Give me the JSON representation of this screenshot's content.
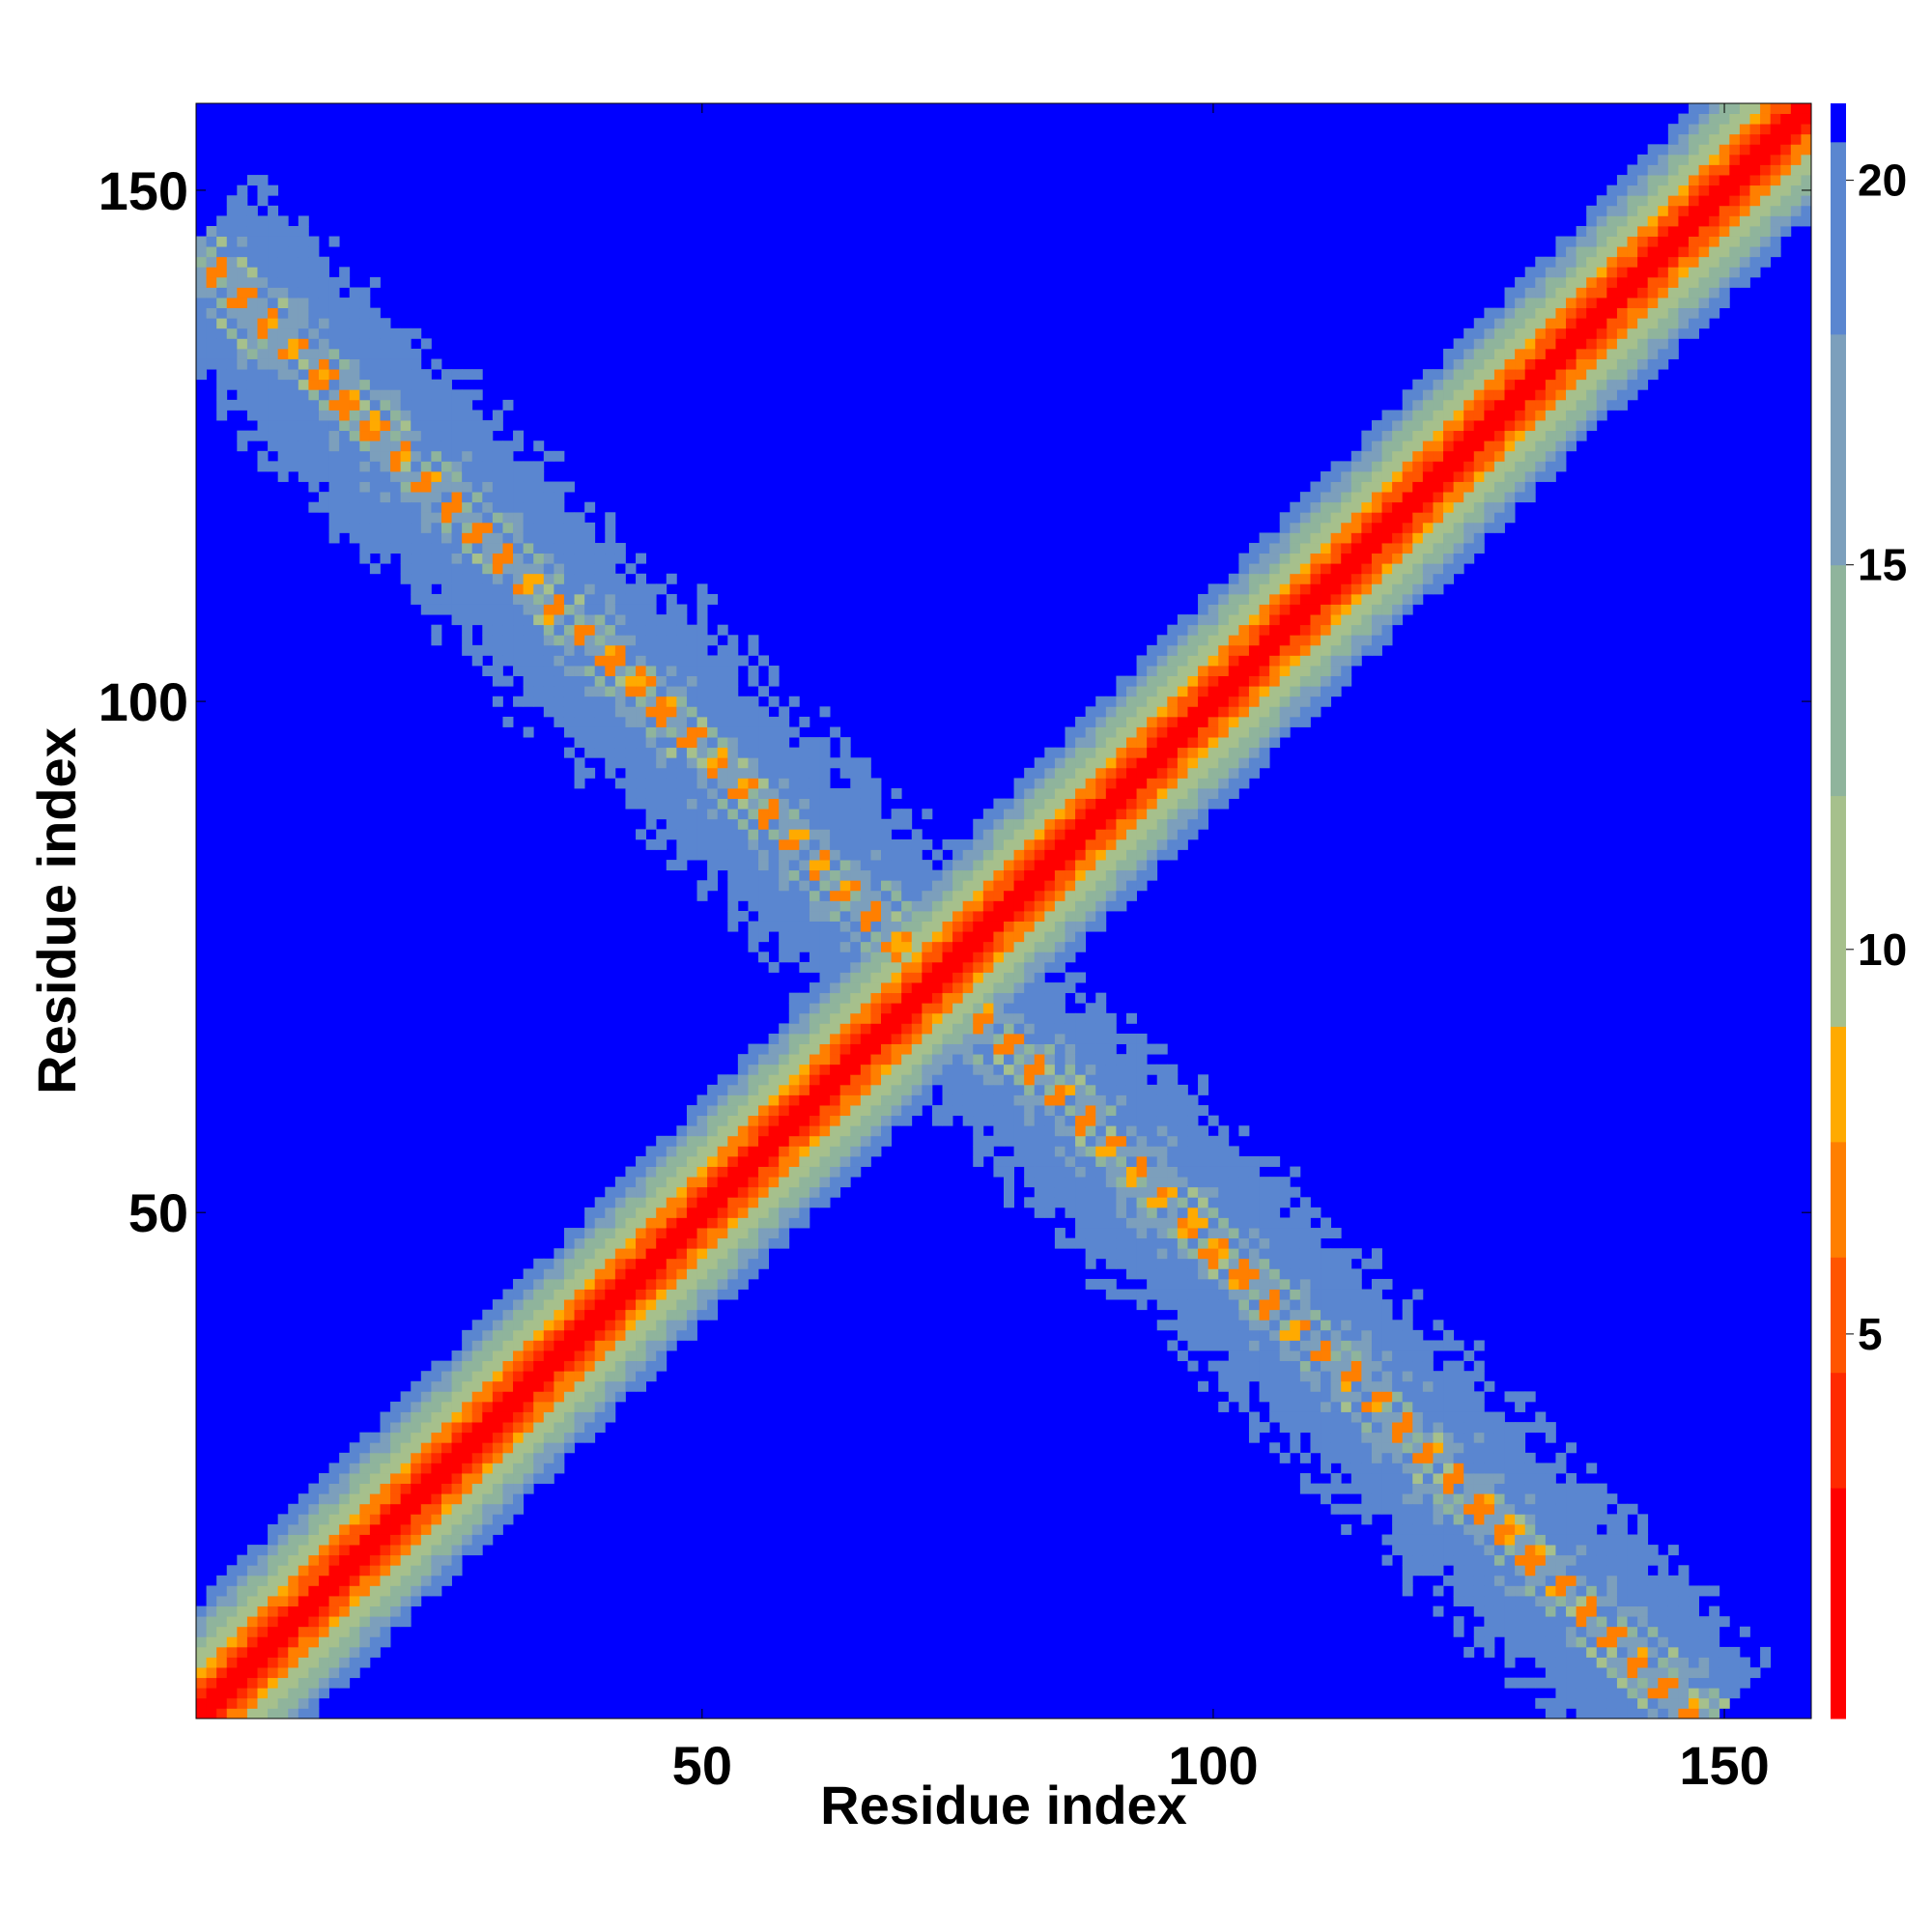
{
  "chart_data": {
    "type": "heatmap",
    "title": "",
    "xlabel": "Residue index",
    "ylabel": "Residue index",
    "xlim": [
      1,
      158
    ],
    "ylim": [
      1,
      158
    ],
    "x_ticks": [
      50,
      100,
      150
    ],
    "y_ticks": [
      50,
      100,
      150
    ],
    "grid": false,
    "n_residues": 158,
    "colorbar": {
      "range": [
        0,
        21
      ],
      "ticks": [
        5,
        10,
        15,
        20
      ],
      "position": "right",
      "stops": [
        {
          "value": 0,
          "color": "#ff0000"
        },
        {
          "value": 3.0,
          "color": "#ff2a00"
        },
        {
          "value": 4.5,
          "color": "#ff5500"
        },
        {
          "value": 6.0,
          "color": "#ff7f00"
        },
        {
          "value": 7.5,
          "color": "#ffaa00"
        },
        {
          "value": 9.0,
          "color": "#a6c08c"
        },
        {
          "value": 12.0,
          "color": "#8fb49c"
        },
        {
          "value": 15.0,
          "color": "#7c9fbc"
        },
        {
          "value": 18.0,
          "color": "#5a86d0"
        },
        {
          "value": 20.0,
          "color": "#5a86d0"
        },
        {
          "value": 20.5,
          "color": "#0000ff"
        }
      ]
    },
    "features": {
      "main_diagonal": {
        "from": [
          1,
          1
        ],
        "to": [
          158,
          158
        ],
        "half_width": 14
      },
      "anti_diagonal": {
        "from": [
          1,
          143
        ],
        "to": [
          147,
          1
        ],
        "half_width": 9,
        "checkerboard_period": 3.6
      },
      "background_value": 21
    }
  }
}
